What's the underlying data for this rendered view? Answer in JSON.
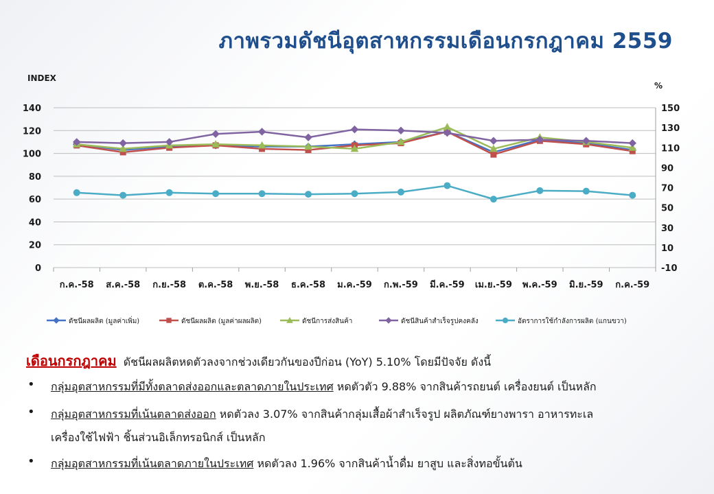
{
  "title": "ภาพรวมดัชนีอุตสาหกรรมเดือนกรกฎาคม  2559",
  "colors": {
    "title": "#1f4e8c",
    "lead": "#c00000",
    "grid": "#bdbdbd"
  },
  "chart_data": {
    "type": "line",
    "left_axis_label": "INDEX",
    "right_axis_label": "%",
    "y_left": {
      "min": 0,
      "max": 140,
      "ticks": [
        0,
        20,
        40,
        60,
        80,
        100,
        120,
        140
      ]
    },
    "y_right": {
      "min": -10,
      "max": 150,
      "ticks": [
        -10,
        10,
        30,
        50,
        70,
        90,
        110,
        130,
        150
      ]
    },
    "grid": true,
    "legend_position": "bottom",
    "categories": [
      "ก.ค.-58",
      "ส.ค.-58",
      "ก.ย.-58",
      "ต.ค.-58",
      "พ.ย.-58",
      "ธ.ค.-58",
      "ม.ค.-59",
      "ก.พ.-59",
      "มี.ค.-59",
      "เม.ย.-59",
      "พ.ค.-59",
      "มิ.ย.-59",
      "ก.ค.-59"
    ],
    "series": [
      {
        "name": "ดัชนีผลผลิต (มูลค่าเพิ่ม)",
        "axis": "left",
        "marker": "diamond",
        "color": "#4472c4",
        "values": [
          108,
          103,
          106,
          107,
          106,
          106,
          108,
          110,
          119,
          101,
          112,
          109,
          103
        ]
      },
      {
        "name": "ดัชนีผลผลิต (มูลค่าผลผลิต)",
        "axis": "left",
        "marker": "square",
        "color": "#c0504d",
        "values": [
          107,
          101,
          105,
          107,
          104,
          103,
          107,
          109,
          119,
          99,
          111,
          108,
          102
        ]
      },
      {
        "name": "ดัชนีการส่งสินค้า",
        "axis": "left",
        "marker": "triangle",
        "color": "#9bbb59",
        "values": [
          108,
          104,
          107,
          108,
          107,
          106,
          104,
          110,
          123,
          104,
          114,
          110,
          105
        ]
      },
      {
        "name": "ดัชนีสินค้าสำเร็จรูปคงคลัง",
        "axis": "left",
        "marker": "diamond",
        "color": "#8064a2",
        "values": [
          110,
          109,
          110,
          117,
          119,
          114,
          121,
          120,
          118,
          111,
          112,
          111,
          109
        ]
      },
      {
        "name": "อัตราการใช้กำลังการผลิต (แกนขวา)",
        "axis": "right",
        "marker": "circle",
        "color": "#4bacc6",
        "values": [
          65,
          62.4,
          65,
          64,
          64,
          63.4,
          64,
          65.6,
          72,
          58.5,
          67,
          66.5,
          62.4
        ]
      }
    ]
  },
  "notes": {
    "lead_month": "เดือนกรกฎาคม",
    "lead_text": "ดัชนีผลผลิตหดตัวลงจากช่วงเดียวกันของปีก่อน  (YoY)  5.10%  โดยมีปัจจัย  ดังนี้",
    "bullet_glyph": "•",
    "items": [
      {
        "head": "กลุ่มอุตสาหกรรมที่มีทั้งตลาดส่งออกและตลาดภายในประเทศ",
        "text": "  หดตัวตัว  9.88%  จากสินค้ารถยนต์  เครื่องยนต์  เป็นหลัก"
      },
      {
        "head": "กลุ่มอุตสาหกรรมที่เน้นตลาดส่งออก",
        "text": " หดตัวลง 3.07% จากสินค้ากลุ่มเสื้อผ้าสำเร็จรูป ผลิตภัณฑ์ยางพารา อาหารทะเล",
        "cont": "เครื่องใช้ไฟฟ้า ชิ้นส่วนอิเล็กทรอนิกส์ เป็นหลัก"
      },
      {
        "head": "กลุ่มอุตสาหกรรมที่เน้นตลาดภายในประเทศ",
        "text": "  หดตัวลง  1.96%  จากสินค้าน้ำดื่ม  ยาสูบ  และสิ่งทอขั้นต้น"
      }
    ]
  }
}
